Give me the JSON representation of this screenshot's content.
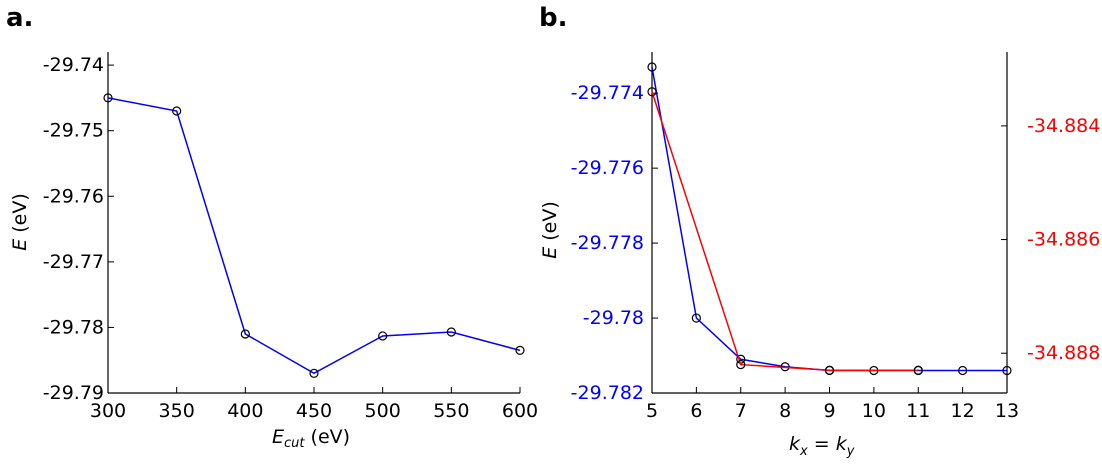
{
  "panels": {
    "a_label": "a.",
    "b_label": "b."
  },
  "chart_data": [
    {
      "type": "line",
      "panel": "a.",
      "xlabel": "E_cut (eV)",
      "ylabel": "E (eV)",
      "xlim": [
        300,
        600
      ],
      "ylim": [
        -29.79,
        -29.738
      ],
      "xticks": [
        "300",
        "350",
        "400",
        "450",
        "500",
        "550",
        "600"
      ],
      "yticks": [
        "-29.74",
        "-29.75",
        "-29.76",
        "-29.77",
        "-29.78",
        "-29.79"
      ],
      "grid": false,
      "series": [
        {
          "color": "#0000ff",
          "marker": "circle",
          "x": [
            300,
            350,
            400,
            450,
            500,
            550,
            600
          ],
          "y": [
            -29.745,
            -29.747,
            -29.781,
            -29.787,
            -29.7813,
            -29.7807,
            -29.7835
          ]
        }
      ]
    },
    {
      "type": "line",
      "panel": "b.",
      "xlabel": "k_x = k_y",
      "ylabel": "E (eV)",
      "xlim": [
        5,
        13
      ],
      "ylim_left": [
        -29.782,
        -29.7729
      ],
      "ylim_right": [
        -34.8887,
        -34.8827
      ],
      "xticks": [
        "5",
        "6",
        "7",
        "8",
        "9",
        "10",
        "11",
        "12",
        "13"
      ],
      "yticks_left": [
        "-29.774",
        "-29.776",
        "-29.778",
        "-29.78",
        "-29.782"
      ],
      "yticks_right": [
        "-34.884",
        "-34.886",
        "-34.888"
      ],
      "left_axis_color": "#0000ff",
      "right_axis_color": "#ff0000",
      "grid": false,
      "series": [
        {
          "color": "#0000ff",
          "axis": "left",
          "marker": "circle",
          "x": [
            5,
            6,
            7,
            8,
            9,
            10,
            11,
            12,
            13
          ],
          "y": [
            -29.7733,
            -29.78,
            -29.7811,
            -29.7813,
            -29.7814,
            -29.7814,
            -29.7814,
            -29.7814,
            -29.7814
          ]
        },
        {
          "color": "#ff0000",
          "axis": "right",
          "marker": "circle",
          "x": [
            5,
            7,
            9,
            11
          ],
          "y": [
            -34.8834,
            -34.8882,
            -34.8883,
            -34.8883
          ]
        }
      ]
    }
  ]
}
